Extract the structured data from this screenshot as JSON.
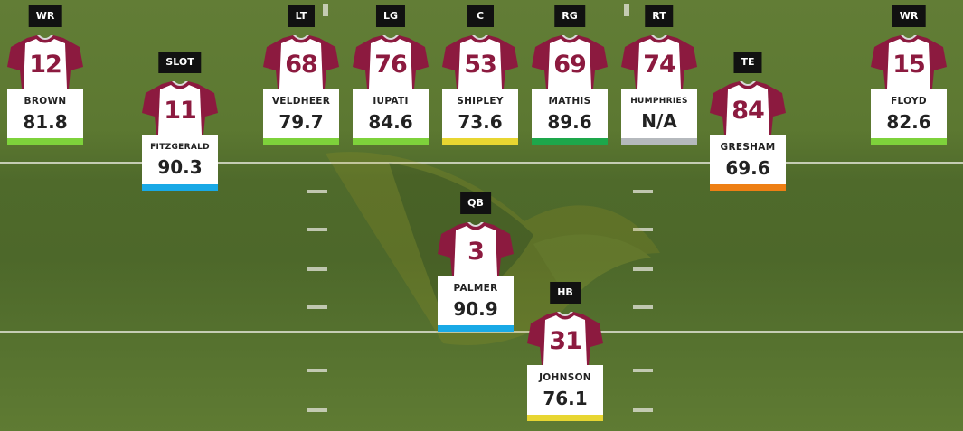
{
  "colors": {
    "jersey_primary": "#8c1a3f",
    "jersey_body": "#ffffff",
    "grade_green": "#7ed23b",
    "grade_dark_green": "#1da74b",
    "grade_yellow": "#e8d631",
    "grade_blue": "#19a9e6",
    "grade_orange": "#ee7f14",
    "grade_gray": "#b5b9bd"
  },
  "players": [
    {
      "id": "wr-left",
      "position": "WR",
      "number": "12",
      "name": "BROWN",
      "grade": "81.8",
      "grade_color": "#7ed23b"
    },
    {
      "id": "slot",
      "position": "SLOT",
      "number": "11",
      "name": "FITZGERALD",
      "grade": "90.3",
      "grade_color": "#19a9e6"
    },
    {
      "id": "lt",
      "position": "LT",
      "number": "68",
      "name": "VELDHEER",
      "grade": "79.7",
      "grade_color": "#7ed23b"
    },
    {
      "id": "lg",
      "position": "LG",
      "number": "76",
      "name": "IUPATI",
      "grade": "84.6",
      "grade_color": "#7ed23b"
    },
    {
      "id": "c",
      "position": "C",
      "number": "53",
      "name": "SHIPLEY",
      "grade": "73.6",
      "grade_color": "#e8d631"
    },
    {
      "id": "rg",
      "position": "RG",
      "number": "69",
      "name": "MATHIS",
      "grade": "89.6",
      "grade_color": "#1da74b"
    },
    {
      "id": "rt",
      "position": "RT",
      "number": "74",
      "name": "HUMPHRIES",
      "grade": "N/A",
      "grade_color": "#b5b9bd"
    },
    {
      "id": "te",
      "position": "TE",
      "number": "84",
      "name": "GRESHAM",
      "grade": "69.6",
      "grade_color": "#ee7f14"
    },
    {
      "id": "wr-right",
      "position": "WR",
      "number": "15",
      "name": "FLOYD",
      "grade": "82.6",
      "grade_color": "#7ed23b"
    },
    {
      "id": "qb",
      "position": "QB",
      "number": "3",
      "name": "PALMER",
      "grade": "90.9",
      "grade_color": "#19a9e6"
    },
    {
      "id": "hb",
      "position": "HB",
      "number": "31",
      "name": "JOHNSON",
      "grade": "76.1",
      "grade_color": "#e8d631"
    }
  ]
}
